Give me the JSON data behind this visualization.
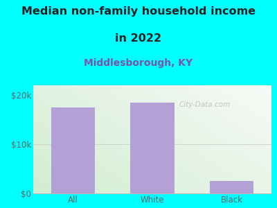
{
  "categories": [
    "All",
    "White",
    "Black"
  ],
  "values": [
    17500,
    18500,
    2500
  ],
  "bar_color": "#b3a0d4",
  "background_color": "#00FFFF",
  "title_line1": "Median non-family household income",
  "title_line2": "in 2022",
  "subtitle": "Middlesborough, KY",
  "title_color": "#222222",
  "subtitle_color": "#7755aa",
  "ylabel_ticks": [
    0,
    10000,
    20000
  ],
  "ylabel_labels": [
    "$0",
    "$10k",
    "$20k"
  ],
  "ylim": [
    0,
    22000
  ],
  "watermark": "City-Data.com",
  "title_fontsize": 11.5,
  "subtitle_fontsize": 10,
  "tick_fontsize": 8.5,
  "plot_bg_green": [
    0.82,
    0.93,
    0.82
  ],
  "plot_bg_white": [
    0.97,
    0.98,
    0.97
  ]
}
